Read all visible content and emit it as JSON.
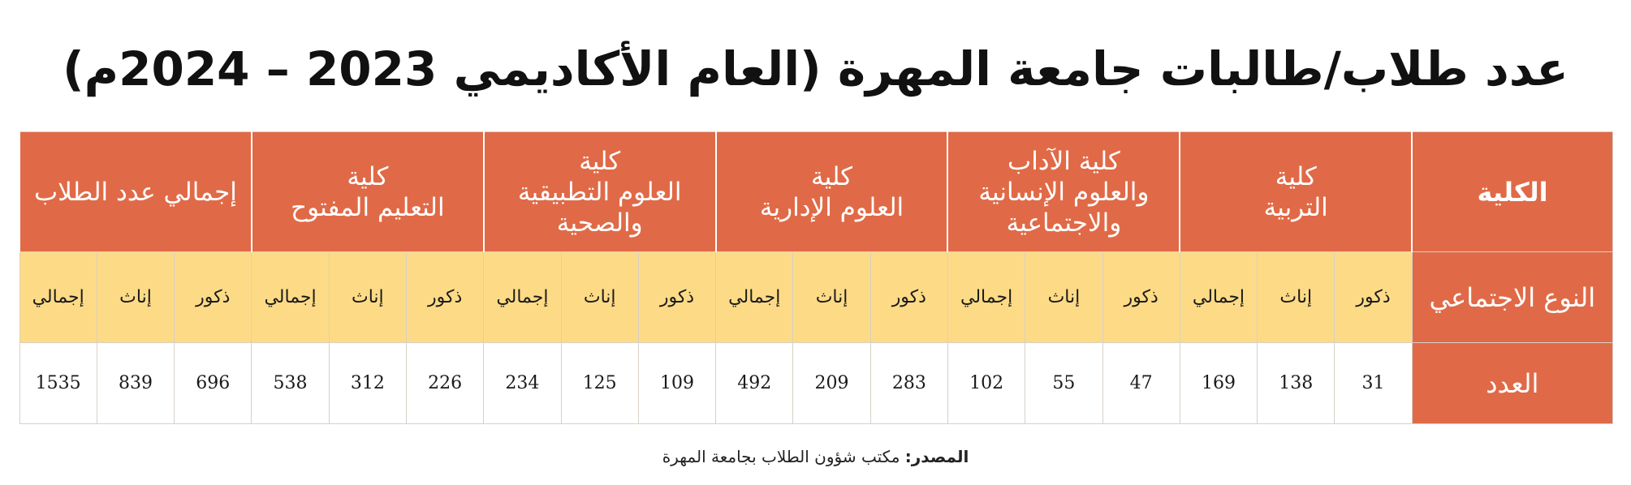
{
  "title": "عدد طلاب/طالبات جامعة المهرة (العام الأكاديمي 2023 – 2024م)",
  "table": {
    "corner_label": "الكلية",
    "gender_row_label": "النوع الاجتماعي",
    "count_row_label": "العدد",
    "groups": [
      {
        "name": "كلية\nالتربية",
        "cells": [
          {
            "label": "ذكور",
            "value": "31"
          },
          {
            "label": "إناث",
            "value": "138"
          },
          {
            "label": "إجمالي",
            "value": "169"
          }
        ]
      },
      {
        "name": "كلية الآداب\nوالعلوم الإنسانية\nوالاجتماعية",
        "cells": [
          {
            "label": "ذكور",
            "value": "47"
          },
          {
            "label": "إناث",
            "value": "55"
          },
          {
            "label": "إجمالي",
            "value": "102"
          }
        ]
      },
      {
        "name": "كلية\nالعلوم الإدارية",
        "cells": [
          {
            "label": "ذكور",
            "value": "283"
          },
          {
            "label": "إناث",
            "value": "209"
          },
          {
            "label": "إجمالي",
            "value": "492"
          }
        ]
      },
      {
        "name": "كلية\nالعلوم التطبيقية\nوالصحية",
        "cells": [
          {
            "label": "ذكور",
            "value": "109"
          },
          {
            "label": "إناث",
            "value": "125"
          },
          {
            "label": "إجمالي",
            "value": "234"
          }
        ]
      },
      {
        "name": "كلية\nالتعليم المفتوح",
        "cells": [
          {
            "label": "ذكور",
            "value": "226"
          },
          {
            "label": "إناث",
            "value": "312"
          },
          {
            "label": "إجمالي",
            "value": "538"
          }
        ]
      },
      {
        "name": "إجمالي عدد الطلاب",
        "cells": [
          {
            "label": "ذكور",
            "value": "696"
          },
          {
            "label": "إناث",
            "value": "839"
          },
          {
            "label": "إجمالي",
            "value": "1535"
          }
        ]
      }
    ]
  },
  "source": {
    "label": "المصدر:",
    "text": " مكتب شؤون الطلاب بجامعة المهرة"
  },
  "colors": {
    "header_orange": "#e06a47",
    "gender_yellow": "#fddb86",
    "count_white": "#ffffff"
  }
}
